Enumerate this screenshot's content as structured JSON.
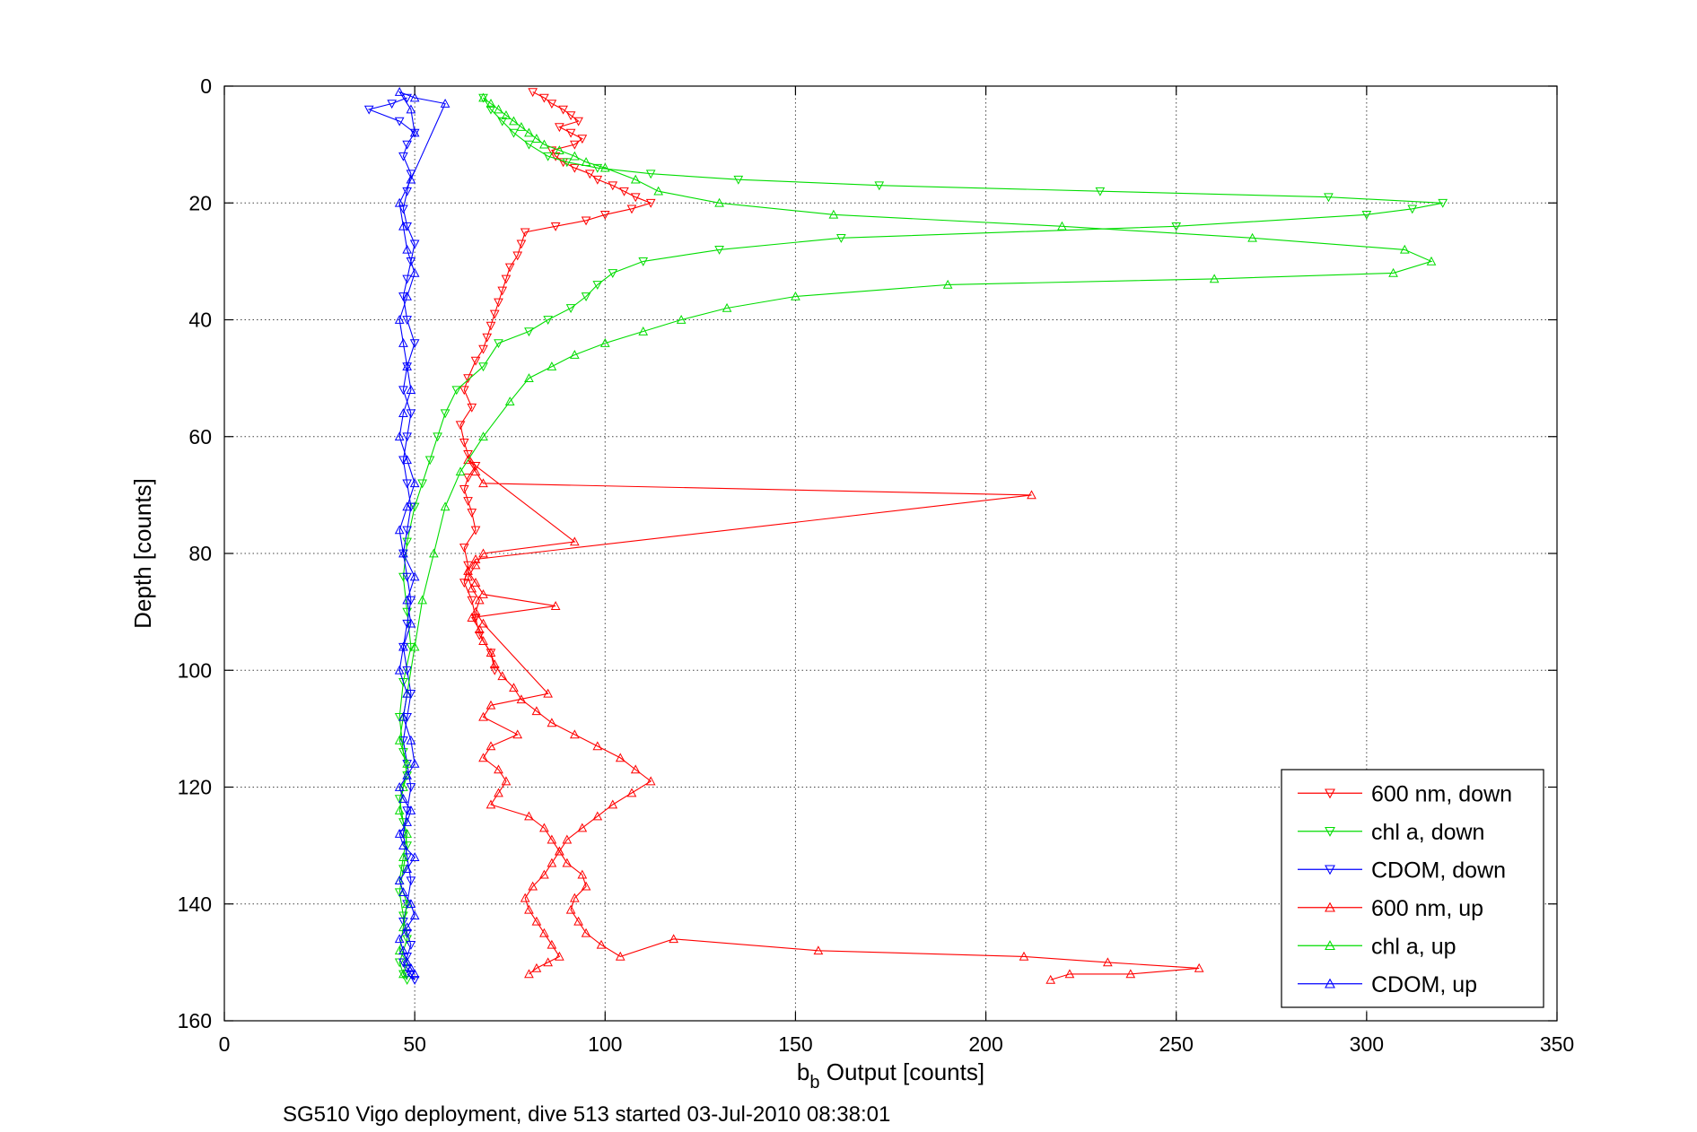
{
  "chart_data": {
    "type": "line",
    "xlabel_main": "b",
    "xlabel_sub": "b",
    "xlabel_rest": " Output [counts]",
    "ylabel": "Depth [counts]",
    "caption": "SG510 Vigo deployment, dive 513 started 03-Jul-2010 08:38:01",
    "xlim": [
      0,
      350
    ],
    "ylim": [
      0,
      160
    ],
    "y_reversed": true,
    "grid": true,
    "xticks": [
      0,
      50,
      100,
      150,
      200,
      250,
      300,
      350
    ],
    "yticks": [
      0,
      20,
      40,
      60,
      80,
      100,
      120,
      140,
      160
    ],
    "xtick_labels": [
      "0",
      "50",
      "100",
      "150",
      "200",
      "250",
      "300",
      "350"
    ],
    "ytick_labels": [
      "0",
      "20",
      "40",
      "60",
      "80",
      "100",
      "120",
      "140",
      "160"
    ],
    "legend_position": "bottom-right",
    "series": [
      {
        "name": "600 nm, down",
        "color": "#ff0000",
        "marker": "triangle-down",
        "x": [
          81,
          84,
          86,
          89,
          91,
          93,
          88,
          91,
          94,
          92,
          86,
          87,
          89,
          92,
          96,
          98,
          102,
          105,
          108,
          112,
          107,
          100,
          95,
          87,
          79,
          78,
          77,
          75,
          74,
          73,
          72,
          71,
          70,
          69,
          68,
          66,
          64,
          63,
          65,
          62,
          63,
          64,
          66,
          64,
          63,
          64,
          65,
          66,
          63,
          64,
          63,
          65,
          66,
          67,
          70,
          71
        ],
        "y": [
          1,
          2,
          3,
          4,
          5,
          6,
          7,
          8,
          9,
          10,
          11,
          12,
          13,
          14,
          15,
          16,
          17,
          18,
          19,
          20,
          21,
          22,
          23,
          24,
          25,
          27,
          29,
          31,
          33,
          35,
          37,
          39,
          41,
          43,
          45,
          47,
          50,
          52,
          55,
          58,
          61,
          63,
          65,
          67,
          69,
          71,
          73,
          76,
          79,
          82,
          85,
          88,
          91,
          94,
          97,
          100
        ]
      },
      {
        "name": "chl a, down",
        "color": "#00dd00",
        "marker": "triangle-down",
        "x": [
          68,
          70,
          73,
          76,
          80,
          85,
          90,
          98,
          112,
          135,
          172,
          230,
          290,
          320,
          312,
          300,
          250,
          162,
          130,
          110,
          102,
          98,
          95,
          91,
          85,
          80,
          72,
          68,
          61,
          58,
          56,
          54,
          52,
          50,
          48,
          47,
          48,
          49,
          47,
          46,
          47,
          48,
          46,
          47,
          48,
          47,
          46,
          47,
          48,
          46,
          47,
          48
        ],
        "y": [
          2,
          4,
          6,
          8,
          10,
          12,
          13,
          14,
          15,
          16,
          17,
          18,
          19,
          20,
          21,
          22,
          24,
          26,
          28,
          30,
          32,
          34,
          36,
          38,
          40,
          42,
          44,
          48,
          52,
          56,
          60,
          64,
          68,
          72,
          78,
          84,
          90,
          96,
          102,
          108,
          114,
          118,
          122,
          126,
          130,
          134,
          138,
          142,
          146,
          150,
          152,
          153
        ]
      },
      {
        "name": "CDOM, down",
        "color": "#0000ff",
        "marker": "triangle-down",
        "x": [
          48,
          44,
          38,
          46,
          50,
          48,
          47,
          49,
          48,
          47,
          48,
          50,
          49,
          48,
          47,
          48,
          50,
          48,
          47,
          49,
          48,
          47,
          48,
          49,
          48,
          47,
          48,
          49,
          48,
          47,
          48,
          49,
          48,
          47,
          48,
          49,
          48,
          47,
          48,
          49,
          48,
          47,
          48,
          49,
          48,
          47,
          48,
          49,
          50,
          48
        ],
        "y": [
          2,
          3,
          4,
          6,
          8,
          10,
          12,
          15,
          18,
          21,
          24,
          27,
          30,
          33,
          36,
          40,
          44,
          48,
          52,
          56,
          60,
          64,
          68,
          72,
          76,
          80,
          84,
          88,
          92,
          96,
          100,
          104,
          108,
          112,
          116,
          120,
          124,
          128,
          132,
          136,
          140,
          143,
          145,
          147,
          149,
          150,
          151,
          152,
          153,
          152
        ]
      },
      {
        "name": "600 nm, up",
        "color": "#ff0000",
        "marker": "triangle-up",
        "x": [
          80,
          82,
          85,
          88,
          86,
          84,
          82,
          80,
          79,
          81,
          84,
          86,
          88,
          90,
          94,
          98,
          102,
          107,
          112,
          108,
          104,
          98,
          92,
          86,
          82,
          78,
          76,
          73,
          71,
          70,
          68,
          67,
          65,
          87,
          68,
          66,
          64,
          66,
          212,
          68,
          66,
          64,
          92,
          68,
          66,
          64,
          65,
          67,
          66,
          68,
          85,
          70,
          68,
          77,
          70,
          68,
          72,
          74,
          72,
          70,
          80,
          84,
          86,
          88,
          90,
          94,
          95,
          92,
          91,
          93,
          95,
          99,
          104,
          118,
          156,
          210,
          232,
          256,
          238,
          222,
          217
        ],
        "y": [
          152,
          151,
          150,
          149,
          147,
          145,
          143,
          141,
          139,
          137,
          135,
          133,
          131,
          129,
          127,
          125,
          123,
          121,
          119,
          117,
          115,
          113,
          111,
          109,
          107,
          105,
          103,
          101,
          99,
          97,
          95,
          93,
          91,
          89,
          87,
          85,
          83,
          81,
          70,
          68,
          66,
          64,
          78,
          80,
          82,
          84,
          86,
          88,
          90,
          92,
          104,
          106,
          108,
          111,
          113,
          115,
          117,
          119,
          121,
          123,
          125,
          127,
          129,
          131,
          133,
          135,
          137,
          139,
          141,
          143,
          145,
          147,
          149,
          146,
          148,
          149,
          150,
          151,
          152,
          152,
          153
        ]
      },
      {
        "name": "chl a, up",
        "color": "#00dd00",
        "marker": "triangle-up",
        "x": [
          47,
          48,
          46,
          47,
          48,
          46,
          47,
          48,
          46,
          47,
          48,
          46,
          47,
          48,
          50,
          52,
          55,
          58,
          62,
          68,
          75,
          80,
          86,
          92,
          100,
          110,
          120,
          132,
          150,
          190,
          260,
          307,
          317,
          310,
          270,
          220,
          160,
          130,
          114,
          108,
          100,
          95,
          92,
          88,
          84,
          82,
          80,
          78,
          76,
          74,
          72,
          70,
          68
        ],
        "y": [
          152,
          150,
          148,
          144,
          140,
          136,
          132,
          128,
          124,
          120,
          116,
          112,
          108,
          104,
          96,
          88,
          80,
          72,
          66,
          60,
          54,
          50,
          48,
          46,
          44,
          42,
          40,
          38,
          36,
          34,
          33,
          32,
          30,
          28,
          26,
          24,
          22,
          20,
          18,
          16,
          14,
          13,
          12,
          11,
          10,
          9,
          8,
          7,
          6,
          5,
          4,
          3,
          2
        ]
      },
      {
        "name": "CDOM, up",
        "color": "#0000ff",
        "marker": "triangle-up",
        "x": [
          50,
          49,
          48,
          47,
          46,
          48,
          50,
          49,
          47,
          46,
          48,
          50,
          47,
          46,
          48,
          49,
          47,
          46,
          48,
          50,
          49,
          47,
          48,
          46,
          47,
          49,
          48,
          50,
          47,
          46,
          48,
          50,
          48,
          46,
          47,
          49,
          48,
          47,
          46,
          48,
          50,
          48,
          47,
          46,
          49,
          58,
          50,
          46,
          49,
          50
        ],
        "y": [
          152,
          151,
          150,
          148,
          146,
          144,
          142,
          140,
          138,
          136,
          134,
          132,
          130,
          128,
          126,
          124,
          122,
          120,
          118,
          116,
          112,
          108,
          104,
          100,
          96,
          92,
          88,
          84,
          80,
          76,
          72,
          68,
          64,
          60,
          56,
          52,
          48,
          44,
          40,
          36,
          32,
          28,
          24,
          20,
          16,
          3,
          2,
          1,
          4,
          8
        ]
      }
    ]
  }
}
